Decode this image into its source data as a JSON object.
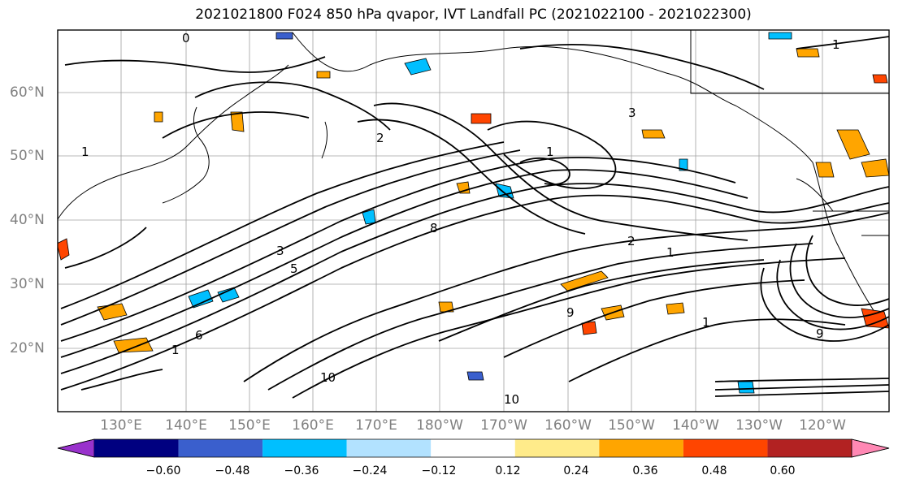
{
  "title": "2021021800 F024 850 hPa qvapor, IVT Landfall PC (2021022100 - 2021022300)",
  "lat_labels": [
    "60°N",
    "50°N",
    "40°N",
    "30°N",
    "20°N"
  ],
  "lon_labels": [
    "130°E",
    "140°E",
    "150°E",
    "160°E",
    "170°E",
    "180°W",
    "170°W",
    "160°W",
    "150°W",
    "140°W",
    "130°W",
    "120°W"
  ],
  "contour_labels": [
    "0",
    "1",
    "1",
    "2",
    "3",
    "5",
    "8",
    "1",
    "2",
    "1",
    "3",
    "9",
    "1",
    "6",
    "9",
    "10",
    "1",
    "10"
  ],
  "colorbar": {
    "labels": [
      "−0.60",
      "−0.48",
      "−0.36",
      "−0.24",
      "−0.12",
      "0.12",
      "0.24",
      "0.36",
      "0.48",
      "0.60"
    ],
    "colors": [
      "#9932cc",
      "#000080",
      "#3a5fcd",
      "#00bfff",
      "#b2e2ff",
      "#ffffff",
      "#ffeb8a",
      "#ffa500",
      "#ff4500",
      "#b22222",
      "#ff88b4"
    ]
  }
}
